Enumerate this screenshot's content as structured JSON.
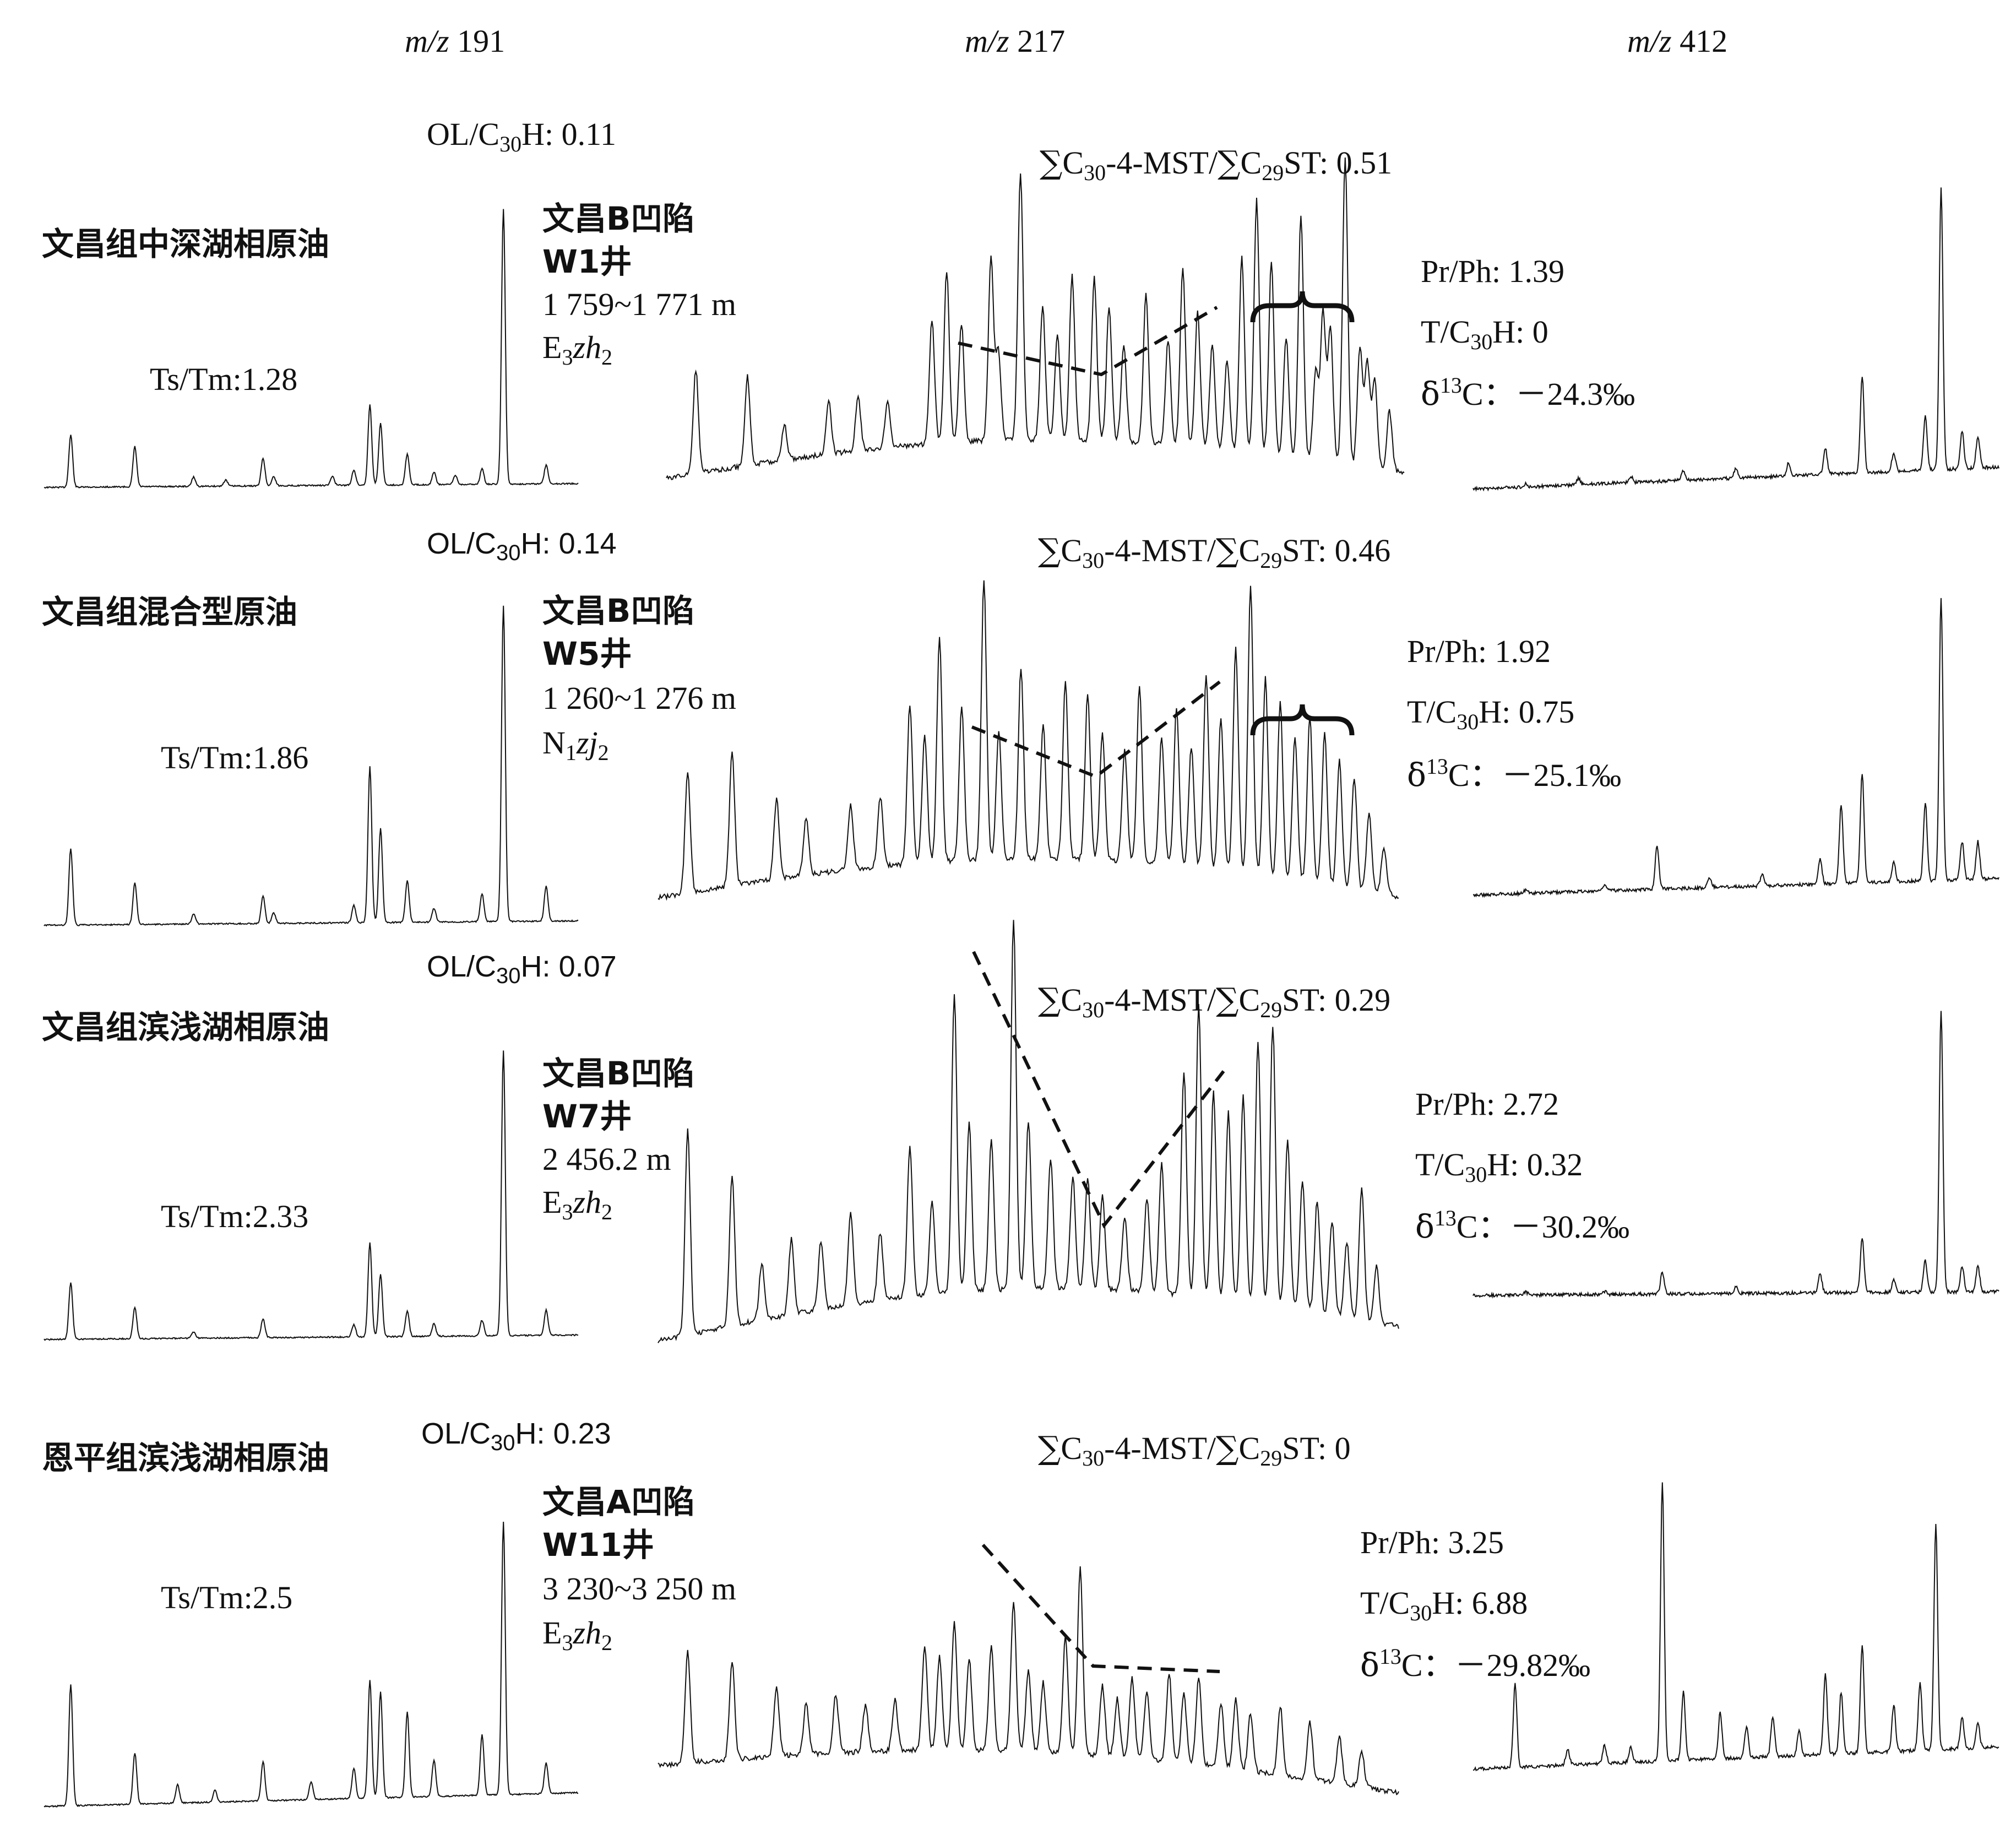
{
  "headers": {
    "col1": {
      "mz": "m/z",
      "value": "191"
    },
    "col2": {
      "mz": "m/z",
      "value": "217"
    },
    "col3": {
      "mz": "m/z",
      "value": "412"
    }
  },
  "rows": [
    {
      "oil_type": "文昌组中深湖相原油",
      "ts_tm": "Ts/Tm:1.28",
      "ol_c30h": "0.11",
      "sag": "文昌B凹陷",
      "well": "W1井",
      "depth": "1 759~1 771 m",
      "formation": {
        "letter": "E",
        "sub1": "3",
        "name": "zh",
        "sub2": "2"
      },
      "mst_st": "0.51",
      "pr_ph": "Pr/Ph: 1.39",
      "t_c30h": "0",
      "d13c": "－24.3‰"
    },
    {
      "oil_type": "文昌组混合型原油",
      "ts_tm": "Ts/Tm:1.86",
      "ol_c30h": "0.14",
      "sag": "文昌B凹陷",
      "well": "W5井",
      "depth": "1 260~1 276 m",
      "formation": {
        "letter": "N",
        "sub1": "1",
        "name": "zj",
        "sub2": "2"
      },
      "mst_st": "0.46",
      "pr_ph": "Pr/Ph: 1.92",
      "t_c30h": "0.75",
      "d13c": "－25.1‰"
    },
    {
      "oil_type": "文昌组滨浅湖相原油",
      "ts_tm": "Ts/Tm:2.33",
      "ol_c30h": "0.07",
      "sag": "文昌B凹陷",
      "well": "W7井",
      "depth": "2 456.2 m",
      "formation": {
        "letter": "E",
        "sub1": "3",
        "name": "zh",
        "sub2": "2"
      },
      "mst_st": "0.29",
      "pr_ph": "Pr/Ph: 2.72",
      "t_c30h": "0.32",
      "d13c": "－30.2‰"
    },
    {
      "oil_type": "恩平组滨浅湖相原油",
      "ts_tm": "Ts/Tm:2.5",
      "ol_c30h": "0.23",
      "sag": "文昌A凹陷",
      "well": "W11井",
      "depth": "3 230~3 250 m",
      "formation": {
        "letter": "E",
        "sub1": "3",
        "name": "zh",
        "sub2": "2"
      },
      "mst_st": "0",
      "pr_ph": "Pr/Ph: 3.25",
      "t_c30h": "6.88",
      "d13c": "－29.82‰"
    }
  ],
  "chart_data": {
    "type": "line",
    "description_note": "",
    "panels": [
      {
        "row": 0,
        "mz": 191,
        "peaks": [
          [
            0.05,
            0.17
          ],
          [
            0.17,
            0.13
          ],
          [
            0.28,
            0.03
          ],
          [
            0.34,
            0.02
          ],
          [
            0.41,
            0.09
          ],
          [
            0.43,
            0.03
          ],
          [
            0.54,
            0.03
          ],
          [
            0.58,
            0.05
          ],
          [
            0.61,
            0.26
          ],
          [
            0.63,
            0.2
          ],
          [
            0.68,
            0.1
          ],
          [
            0.73,
            0.04
          ],
          [
            0.77,
            0.03
          ],
          [
            0.82,
            0.05
          ],
          [
            0.86,
            0.89
          ],
          [
            0.94,
            0.06
          ]
        ]
      },
      {
        "row": 0,
        "mz": 217,
        "peaks": [
          [
            0.04,
            0.35
          ],
          [
            0.11,
            0.3
          ],
          [
            0.16,
            0.12
          ],
          [
            0.22,
            0.18
          ],
          [
            0.26,
            0.18
          ],
          [
            0.3,
            0.15
          ],
          [
            0.36,
            0.42
          ],
          [
            0.38,
            0.58
          ],
          [
            0.4,
            0.4
          ],
          [
            0.44,
            0.62
          ],
          [
            0.45,
            0.3
          ],
          [
            0.48,
            0.9
          ],
          [
            0.51,
            0.45
          ],
          [
            0.53,
            0.35
          ],
          [
            0.55,
            0.55
          ],
          [
            0.58,
            0.55
          ],
          [
            0.6,
            0.45
          ],
          [
            0.62,
            0.33
          ],
          [
            0.65,
            0.5
          ],
          [
            0.68,
            0.35
          ],
          [
            0.7,
            0.6
          ],
          [
            0.72,
            0.45
          ],
          [
            0.74,
            0.35
          ],
          [
            0.76,
            0.3
          ],
          [
            0.78,
            0.65
          ],
          [
            0.8,
            0.85
          ],
          [
            0.82,
            0.65
          ],
          [
            0.84,
            0.4
          ],
          [
            0.86,
            0.35
          ],
          [
            0.88,
            0.3
          ],
          [
            0.9,
            0.45
          ],
          [
            0.92,
            0.55
          ],
          [
            0.94,
            0.4
          ],
          [
            0.96,
            0.3
          ],
          [
            0.98,
            0.2
          ],
          [
            0.86,
            0.46
          ],
          [
            0.89,
            0.5
          ],
          [
            0.92,
            0.48
          ],
          [
            0.95,
            0.35
          ]
        ]
      },
      {
        "row": 0,
        "mz": 412,
        "peaks": [
          [
            0.1,
            0.01
          ],
          [
            0.2,
            0.02
          ],
          [
            0.3,
            0.02
          ],
          [
            0.4,
            0.03
          ],
          [
            0.5,
            0.03
          ],
          [
            0.6,
            0.04
          ],
          [
            0.67,
            0.08
          ],
          [
            0.74,
            0.3
          ],
          [
            0.8,
            0.06
          ],
          [
            0.86,
            0.17
          ],
          [
            0.89,
            0.88
          ],
          [
            0.93,
            0.12
          ],
          [
            0.96,
            0.1
          ]
        ]
      },
      {
        "row": 1,
        "mz": 191,
        "peaks": [
          [
            0.05,
            0.22
          ],
          [
            0.17,
            0.12
          ],
          [
            0.28,
            0.03
          ],
          [
            0.41,
            0.08
          ],
          [
            0.43,
            0.03
          ],
          [
            0.58,
            0.05
          ],
          [
            0.61,
            0.45
          ],
          [
            0.63,
            0.27
          ],
          [
            0.68,
            0.12
          ],
          [
            0.73,
            0.04
          ],
          [
            0.82,
            0.08
          ],
          [
            0.86,
            0.91
          ],
          [
            0.94,
            0.1
          ]
        ]
      },
      {
        "row": 1,
        "mz": 217,
        "peaks": [
          [
            0.04,
            0.38
          ],
          [
            0.1,
            0.42
          ],
          [
            0.16,
            0.25
          ],
          [
            0.2,
            0.18
          ],
          [
            0.26,
            0.2
          ],
          [
            0.3,
            0.22
          ],
          [
            0.34,
            0.5
          ],
          [
            0.36,
            0.4
          ],
          [
            0.38,
            0.7
          ],
          [
            0.41,
            0.48
          ],
          [
            0.44,
            0.88
          ],
          [
            0.46,
            0.4
          ],
          [
            0.49,
            0.6
          ],
          [
            0.52,
            0.42
          ],
          [
            0.55,
            0.55
          ],
          [
            0.58,
            0.52
          ],
          [
            0.6,
            0.4
          ],
          [
            0.63,
            0.35
          ],
          [
            0.65,
            0.55
          ],
          [
            0.68,
            0.4
          ],
          [
            0.7,
            0.5
          ],
          [
            0.72,
            0.38
          ],
          [
            0.74,
            0.6
          ],
          [
            0.76,
            0.48
          ],
          [
            0.78,
            0.7
          ],
          [
            0.8,
            0.9
          ],
          [
            0.82,
            0.62
          ],
          [
            0.84,
            0.55
          ],
          [
            0.86,
            0.45
          ],
          [
            0.88,
            0.52
          ],
          [
            0.9,
            0.48
          ],
          [
            0.92,
            0.4
          ],
          [
            0.94,
            0.35
          ],
          [
            0.96,
            0.25
          ],
          [
            0.98,
            0.15
          ]
        ]
      },
      {
        "row": 1,
        "mz": 412,
        "peaks": [
          [
            0.1,
            0.01
          ],
          [
            0.25,
            0.02
          ],
          [
            0.35,
            0.14
          ],
          [
            0.45,
            0.03
          ],
          [
            0.55,
            0.04
          ],
          [
            0.66,
            0.08
          ],
          [
            0.7,
            0.25
          ],
          [
            0.74,
            0.35
          ],
          [
            0.8,
            0.06
          ],
          [
            0.86,
            0.25
          ],
          [
            0.89,
            0.9
          ],
          [
            0.93,
            0.12
          ],
          [
            0.96,
            0.12
          ]
        ]
      },
      {
        "row": 2,
        "mz": 191,
        "peaks": [
          [
            0.05,
            0.18
          ],
          [
            0.17,
            0.1
          ],
          [
            0.28,
            0.02
          ],
          [
            0.41,
            0.06
          ],
          [
            0.58,
            0.04
          ],
          [
            0.61,
            0.3
          ],
          [
            0.63,
            0.2
          ],
          [
            0.68,
            0.08
          ],
          [
            0.73,
            0.04
          ],
          [
            0.82,
            0.05
          ],
          [
            0.86,
            0.91
          ],
          [
            0.94,
            0.08
          ]
        ]
      },
      {
        "row": 2,
        "mz": 217,
        "peaks": [
          [
            0.04,
            0.55
          ],
          [
            0.1,
            0.4
          ],
          [
            0.14,
            0.15
          ],
          [
            0.18,
            0.2
          ],
          [
            0.22,
            0.18
          ],
          [
            0.26,
            0.25
          ],
          [
            0.3,
            0.18
          ],
          [
            0.34,
            0.4
          ],
          [
            0.37,
            0.25
          ],
          [
            0.4,
            0.8
          ],
          [
            0.42,
            0.45
          ],
          [
            0.45,
            0.4
          ],
          [
            0.48,
            0.99
          ],
          [
            0.5,
            0.45
          ],
          [
            0.53,
            0.35
          ],
          [
            0.56,
            0.3
          ],
          [
            0.58,
            0.3
          ],
          [
            0.6,
            0.25
          ],
          [
            0.63,
            0.2
          ],
          [
            0.66,
            0.25
          ],
          [
            0.68,
            0.35
          ],
          [
            0.71,
            0.6
          ],
          [
            0.73,
            0.78
          ],
          [
            0.75,
            0.55
          ],
          [
            0.77,
            0.5
          ],
          [
            0.79,
            0.55
          ],
          [
            0.81,
            0.7
          ],
          [
            0.83,
            0.75
          ],
          [
            0.85,
            0.45
          ],
          [
            0.87,
            0.35
          ],
          [
            0.89,
            0.3
          ],
          [
            0.91,
            0.25
          ],
          [
            0.93,
            0.2
          ],
          [
            0.95,
            0.35
          ],
          [
            0.97,
            0.15
          ]
        ]
      },
      {
        "row": 2,
        "mz": 412,
        "peaks": [
          [
            0.1,
            0.01
          ],
          [
            0.25,
            0.01
          ],
          [
            0.36,
            0.07
          ],
          [
            0.5,
            0.02
          ],
          [
            0.66,
            0.06
          ],
          [
            0.74,
            0.17
          ],
          [
            0.8,
            0.04
          ],
          [
            0.86,
            0.1
          ],
          [
            0.89,
            0.9
          ],
          [
            0.93,
            0.08
          ],
          [
            0.96,
            0.08
          ]
        ]
      },
      {
        "row": 3,
        "mz": 191,
        "peaks": [
          [
            0.05,
            0.4
          ],
          [
            0.17,
            0.17
          ],
          [
            0.25,
            0.06
          ],
          [
            0.32,
            0.04
          ],
          [
            0.41,
            0.13
          ],
          [
            0.5,
            0.06
          ],
          [
            0.58,
            0.1
          ],
          [
            0.61,
            0.39
          ],
          [
            0.63,
            0.35
          ],
          [
            0.68,
            0.28
          ],
          [
            0.73,
            0.12
          ],
          [
            0.82,
            0.2
          ],
          [
            0.86,
            0.9
          ],
          [
            0.94,
            0.1
          ]
        ]
      },
      {
        "row": 3,
        "mz": 217,
        "peaks": [
          [
            0.04,
            0.48
          ],
          [
            0.1,
            0.42
          ],
          [
            0.16,
            0.3
          ],
          [
            0.2,
            0.22
          ],
          [
            0.24,
            0.25
          ],
          [
            0.28,
            0.2
          ],
          [
            0.32,
            0.22
          ],
          [
            0.36,
            0.45
          ],
          [
            0.38,
            0.4
          ],
          [
            0.4,
            0.55
          ],
          [
            0.42,
            0.4
          ],
          [
            0.45,
            0.45
          ],
          [
            0.48,
            0.65
          ],
          [
            0.5,
            0.35
          ],
          [
            0.52,
            0.3
          ],
          [
            0.55,
            0.5
          ],
          [
            0.57,
            0.8
          ],
          [
            0.6,
            0.3
          ],
          [
            0.62,
            0.25
          ],
          [
            0.64,
            0.35
          ],
          [
            0.66,
            0.3
          ],
          [
            0.69,
            0.38
          ],
          [
            0.71,
            0.3
          ],
          [
            0.73,
            0.38
          ],
          [
            0.76,
            0.28
          ],
          [
            0.78,
            0.3
          ],
          [
            0.8,
            0.25
          ],
          [
            0.84,
            0.3
          ],
          [
            0.88,
            0.25
          ],
          [
            0.92,
            0.2
          ],
          [
            0.95,
            0.15
          ]
        ]
      },
      {
        "row": 3,
        "mz": 412,
        "peaks": [
          [
            0.08,
            0.27
          ],
          [
            0.18,
            0.05
          ],
          [
            0.25,
            0.06
          ],
          [
            0.3,
            0.05
          ],
          [
            0.36,
            0.9
          ],
          [
            0.4,
            0.22
          ],
          [
            0.47,
            0.15
          ],
          [
            0.52,
            0.1
          ],
          [
            0.57,
            0.13
          ],
          [
            0.62,
            0.08
          ],
          [
            0.67,
            0.26
          ],
          [
            0.7,
            0.2
          ],
          [
            0.74,
            0.35
          ],
          [
            0.8,
            0.15
          ],
          [
            0.85,
            0.22
          ],
          [
            0.88,
            0.73
          ],
          [
            0.93,
            0.1
          ],
          [
            0.96,
            0.08
          ]
        ]
      }
    ]
  }
}
